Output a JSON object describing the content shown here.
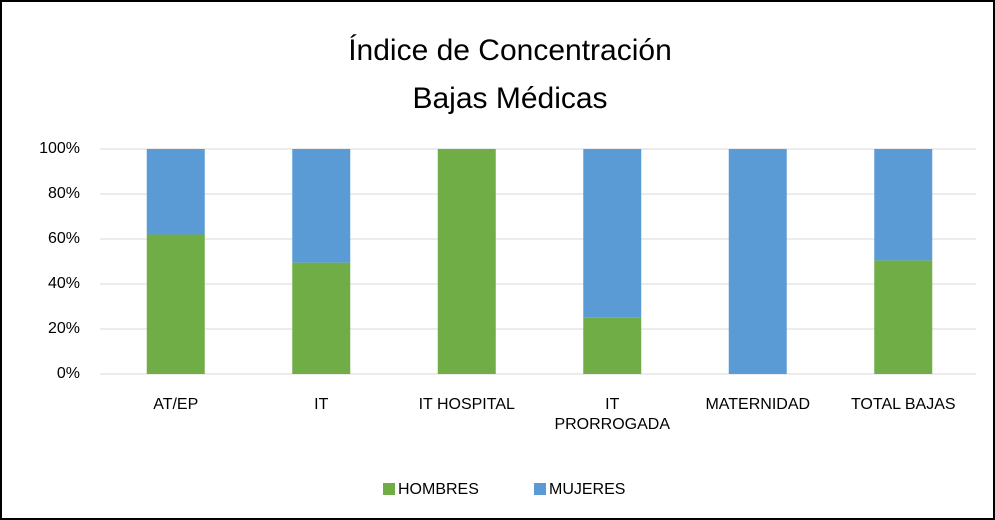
{
  "chart_data": {
    "type": "stacked_bar",
    "title": "Índice de Concentración",
    "subtitle": "Bajas Médicas",
    "categories": [
      "AT/EP",
      "IT",
      "IT HOSPITAL",
      "IT PRORROGADA",
      "MATERNIDAD",
      "TOTAL BAJAS"
    ],
    "series": [
      {
        "name": "HOMBRES",
        "color": "#70ad47",
        "values": [
          62,
          49.5,
          100,
          25,
          0,
          50.5
        ]
      },
      {
        "name": "MUJERES",
        "color": "#5b9bd5",
        "values": [
          38,
          50.5,
          0,
          75,
          100,
          49.5
        ]
      }
    ],
    "ylim": [
      0,
      100
    ],
    "yticks": [
      {
        "value": 0,
        "label": "0%"
      },
      {
        "value": 20,
        "label": "20%"
      },
      {
        "value": 40,
        "label": "40%"
      },
      {
        "value": 60,
        "label": "60%"
      },
      {
        "value": 80,
        "label": "80%"
      },
      {
        "value": 100,
        "label": "100%"
      }
    ],
    "grid": true,
    "legend": "bottom"
  }
}
